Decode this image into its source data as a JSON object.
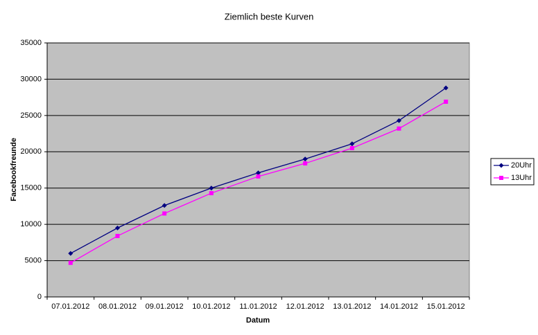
{
  "chart_data": {
    "type": "line",
    "title": "Ziemlich beste Kurven",
    "xlabel": "Datum",
    "ylabel": "Facebookfreunde",
    "categories": [
      "07.01.2012",
      "08.01.2012",
      "09.01.2012",
      "10.01.2012",
      "11.01.2012",
      "12.01.2012",
      "13.01.2012",
      "14.01.2012",
      "15.01.2012"
    ],
    "series": [
      {
        "name": "20Uhr",
        "color": "#000080",
        "marker": "diamond",
        "values": [
          6000,
          9500,
          12600,
          15000,
          17100,
          19000,
          21100,
          24300,
          28800
        ]
      },
      {
        "name": "13Uhr",
        "color": "#ff00ff",
        "marker": "square",
        "values": [
          4700,
          8400,
          11500,
          14300,
          16600,
          18400,
          20500,
          23200,
          26900
        ]
      }
    ],
    "ylim": [
      0,
      35000
    ],
    "yticks": [
      0,
      5000,
      10000,
      15000,
      20000,
      25000,
      30000,
      35000
    ],
    "grid": true,
    "legend": "right"
  }
}
